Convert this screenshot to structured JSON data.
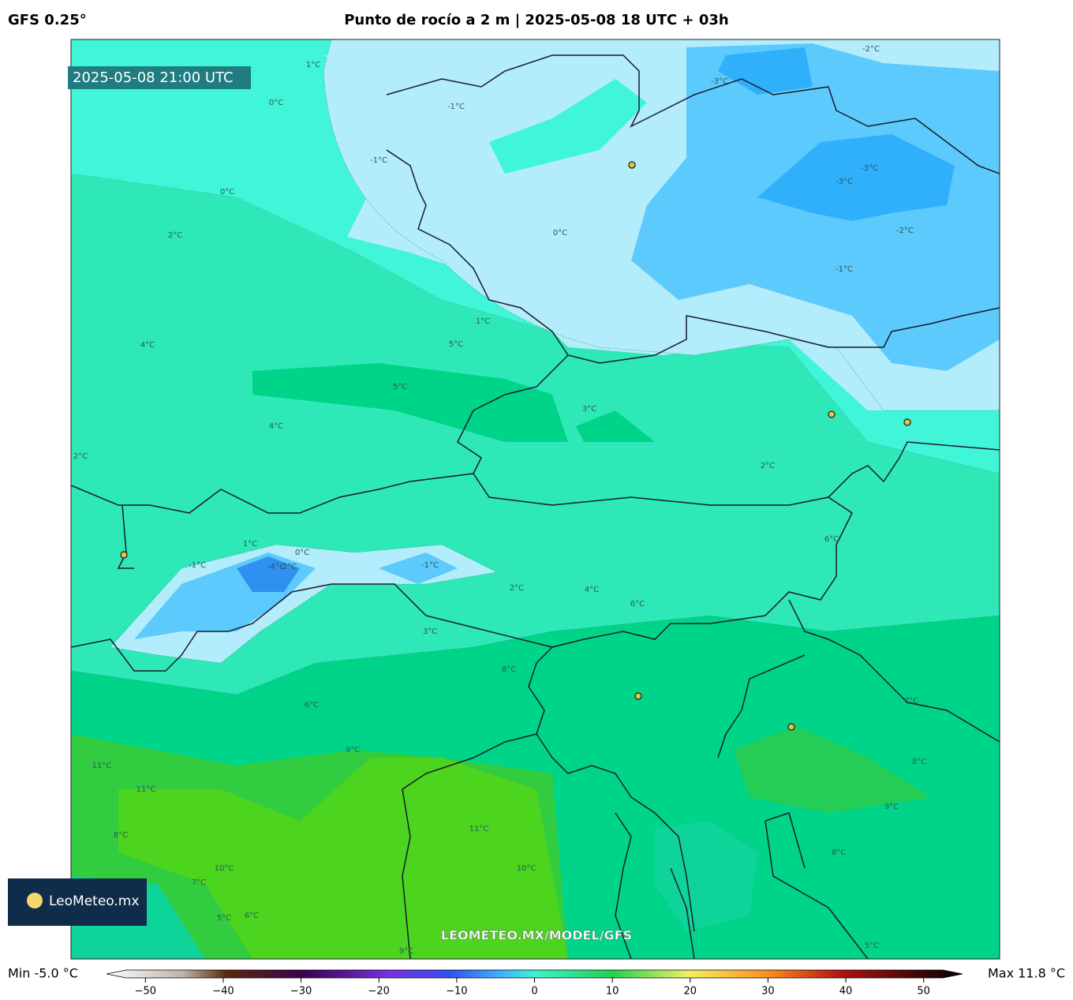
{
  "header": {
    "model": "GFS 0.25°",
    "title": "Punto de rocío a 2 m | 2025-05-08 18 UTC + 03h"
  },
  "map": {
    "timestamp": "2025-05-08 21:00 UTC",
    "watermark": "LEOMETEO.MX/MODEL/GFS",
    "logo": "LeoMeteo.mx",
    "contour_labels": [
      "1°C",
      "0°C",
      "-1°C",
      "-1°C",
      "0°C",
      "-2°C",
      "-3°C",
      "-3°C",
      "-3°C",
      "-2°C",
      "-1°C",
      "0°C",
      "2°C",
      "1°C",
      "4°C",
      "5°C",
      "5°C",
      "3°C",
      "4°C",
      "2°C",
      "1°C",
      "0°C",
      "-1°C",
      "-4°C",
      "-2°C",
      "2°C",
      "-1°C",
      "2°C",
      "4°C",
      "6°C",
      "3°C",
      "6°C",
      "8°C",
      "9°C",
      "11°C",
      "11°C",
      "8°C",
      "10°C",
      "7°C",
      "11°C",
      "10°C",
      "7°C",
      "8°C",
      "9°C",
      "8°C",
      "6°C",
      "5°C",
      "6°C",
      "5°C",
      "9°C"
    ]
  },
  "colorbar": {
    "min_label": "Min -5.0 °C",
    "max_label": "Max 11.8 °C",
    "lim": [
      -55,
      55
    ],
    "ticks": [
      {
        "value": -50,
        "label": "−50"
      },
      {
        "value": -40,
        "label": "−40"
      },
      {
        "value": -30,
        "label": "−30"
      },
      {
        "value": -20,
        "label": "−20"
      },
      {
        "value": -10,
        "label": "−10"
      },
      0,
      10,
      20,
      30,
      40,
      50
    ]
  }
}
